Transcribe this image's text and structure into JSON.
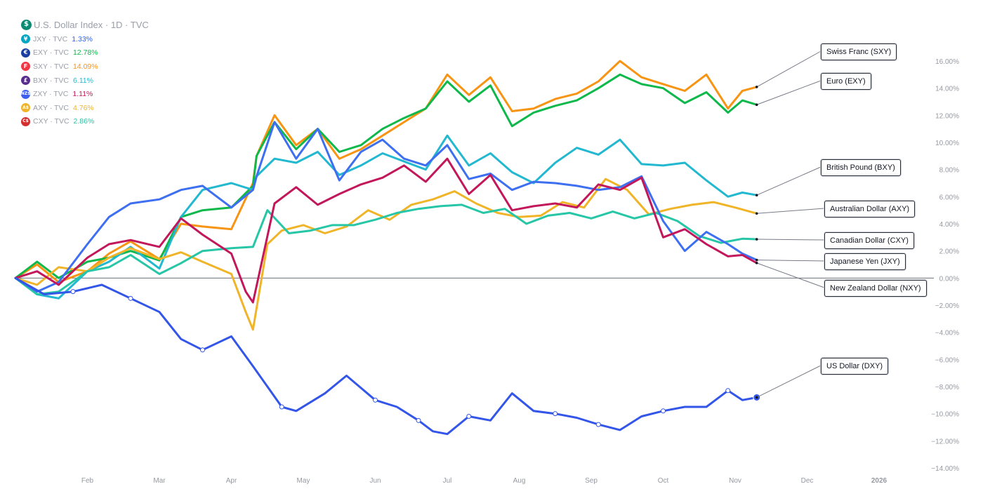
{
  "legend": {
    "title": "U.S. Dollar Index · 1D · TVC",
    "title_badge": "$",
    "title_badge_color": "#0e8a72",
    "items": [
      {
        "symbol": "JXY · TVC",
        "value": "1.33%",
        "badge": "¥",
        "badge_color": "#00a6c4",
        "value_color": "#2962ff"
      },
      {
        "symbol": "EXY · TVC",
        "value": "12.78%",
        "badge": "€",
        "badge_color": "#1a3fa0",
        "value_color": "#0fb84b"
      },
      {
        "symbol": "SXY · TVC",
        "value": "14.09%",
        "badge": "F",
        "badge_color": "#f23645",
        "value_color": "#f79413"
      },
      {
        "symbol": "BXY · TVC",
        "value": "6.11%",
        "badge": "£",
        "badge_color": "#5a2d91",
        "value_color": "#22b8cf"
      },
      {
        "symbol": "ZXY · TVC",
        "value": "1.11%",
        "badge": "NZ$",
        "badge_color": "#3d5ff0",
        "value_color": "#c2185b"
      },
      {
        "symbol": "AXY · TVC",
        "value": "4.76%",
        "badge": "A$",
        "badge_color": "#f0b429",
        "value_color": "#f0b429"
      },
      {
        "symbol": "CXY · TVC",
        "value": "2.86%",
        "badge": "C$",
        "badge_color": "#d32f2f",
        "value_color": "#26c6a6"
      }
    ]
  },
  "callouts": [
    {
      "label": "Swiss Franc (SXY)"
    },
    {
      "label": "Euro (EXY)"
    },
    {
      "label": "British Pound (BXY)"
    },
    {
      "label": "Australian Dollar (AXY)"
    },
    {
      "label": "Canadian Dollar (CXY)"
    },
    {
      "label": "Japanese Yen (JXY)"
    },
    {
      "label": "New Zealand Dollar (NXY)"
    },
    {
      "label": "US Dollar (DXY)"
    }
  ],
  "chart_data": {
    "type": "line",
    "ylim": [
      -14,
      16
    ],
    "y_ticks": [
      "16.00%",
      "14.00%",
      "12.00%",
      "10.00%",
      "8.00%",
      "6.00%",
      "4.00%",
      "2.00%",
      "0.00%",
      "−2.00%",
      "−4.00%",
      "−6.00%",
      "−8.00%",
      "−10.00%",
      "−12.00%",
      "−14.00%"
    ],
    "x_ticks": [
      "Feb",
      "Mar",
      "Apr",
      "May",
      "Jun",
      "Jul",
      "Aug",
      "Sep",
      "Oct",
      "Nov",
      "Dec",
      "2026"
    ],
    "x_range": [
      0,
      12.3
    ],
    "series": [
      {
        "name": "SXY",
        "color": "#f79413",
        "x": [
          0,
          0.3,
          0.6,
          1,
          1.3,
          1.6,
          2,
          2.3,
          2.6,
          3,
          3.3,
          3.35,
          3.6,
          3.9,
          4.2,
          4.5,
          4.8,
          5.1,
          5.4,
          5.7,
          6,
          6.3,
          6.6,
          6.9,
          7.2,
          7.5,
          7.8,
          8.1,
          8.4,
          8.7,
          9,
          9.3,
          9.6,
          9.9,
          10.1,
          10.3
        ],
        "y": [
          0,
          1,
          -0.3,
          0.5,
          1.8,
          2.7,
          1.4,
          4,
          3.8,
          3.6,
          7,
          9,
          12,
          9.8,
          11,
          8.8,
          9.5,
          10.5,
          11.5,
          12.5,
          15,
          13.5,
          14.8,
          12.3,
          12.5,
          13.2,
          13.6,
          14.5,
          16,
          14.8,
          14.3,
          13.8,
          15,
          12.5,
          13.8,
          14.09
        ]
      },
      {
        "name": "EXY",
        "color": "#0fb84b",
        "x": [
          0,
          0.3,
          0.6,
          1,
          1.3,
          1.6,
          2,
          2.3,
          2.6,
          3,
          3.3,
          3.35,
          3.6,
          3.9,
          4.2,
          4.5,
          4.8,
          5.1,
          5.4,
          5.7,
          6,
          6.3,
          6.6,
          6.9,
          7.2,
          7.5,
          7.8,
          8.1,
          8.4,
          8.7,
          9,
          9.3,
          9.6,
          9.9,
          10.1,
          10.3
        ],
        "y": [
          0,
          1.2,
          0,
          1.2,
          1.5,
          2,
          1.3,
          4.5,
          5,
          5.2,
          6.8,
          9,
          11.5,
          9.5,
          11,
          9.3,
          9.8,
          11,
          11.8,
          12.5,
          14.5,
          13,
          14.2,
          11.2,
          12.2,
          12.7,
          13.1,
          14,
          15,
          14.3,
          14,
          12.9,
          13.7,
          12.2,
          13.1,
          12.78
        ]
      },
      {
        "name": "BXY",
        "color": "#22b8cf",
        "x": [
          0,
          0.3,
          0.6,
          1,
          1.3,
          1.6,
          2,
          2.3,
          2.6,
          3,
          3.3,
          3.35,
          3.6,
          3.9,
          4.2,
          4.5,
          4.8,
          5.1,
          5.4,
          5.7,
          6,
          6.3,
          6.6,
          6.9,
          7.2,
          7.5,
          7.8,
          8.1,
          8.4,
          8.7,
          9,
          9.3,
          9.6,
          9.9,
          10.1,
          10.3
        ],
        "y": [
          0,
          -1.2,
          -1.5,
          0.5,
          1.2,
          2.3,
          0.7,
          4.5,
          6.5,
          7,
          6.5,
          7.5,
          8.8,
          8.5,
          9.3,
          7.6,
          8.3,
          9.2,
          8.6,
          8,
          10.5,
          8.3,
          9.2,
          7.8,
          7,
          8.5,
          9.6,
          9.1,
          10.2,
          8.4,
          8.3,
          8.5,
          7.2,
          6,
          6.3,
          6.11
        ]
      },
      {
        "name": "AXY",
        "color": "#f0b429",
        "x": [
          0,
          0.3,
          0.6,
          1,
          1.3,
          1.6,
          2,
          2.3,
          2.6,
          3,
          3.2,
          3.3,
          3.5,
          3.7,
          4,
          4.3,
          4.6,
          4.9,
          5.2,
          5.5,
          5.8,
          6.1,
          6.4,
          6.7,
          7,
          7.3,
          7.6,
          7.9,
          8.2,
          8.5,
          8.8,
          9.1,
          9.4,
          9.7,
          10,
          10.3
        ],
        "y": [
          0,
          -0.5,
          0.8,
          0.5,
          1.5,
          2.2,
          1.4,
          1.9,
          1.2,
          0.3,
          -2.5,
          -3.8,
          2.5,
          3.5,
          3.9,
          3.3,
          3.8,
          5,
          4.3,
          5.4,
          5.8,
          6.4,
          5.5,
          4.8,
          4.5,
          4.6,
          5.6,
          5.2,
          7.3,
          6.5,
          4.7,
          5.1,
          5.4,
          5.6,
          5.2,
          4.76
        ]
      },
      {
        "name": "CXY",
        "color": "#26c6a6",
        "x": [
          0,
          0.3,
          0.6,
          1,
          1.3,
          1.6,
          2,
          2.3,
          2.6,
          3,
          3.3,
          3.5,
          3.8,
          4.1,
          4.4,
          4.7,
          5,
          5.3,
          5.6,
          5.9,
          6.2,
          6.5,
          6.8,
          7.1,
          7.4,
          7.7,
          8,
          8.3,
          8.6,
          8.9,
          9.2,
          9.5,
          9.8,
          10.1,
          10.3
        ],
        "y": [
          0,
          -1.2,
          -1,
          0.5,
          0.8,
          1.7,
          0.3,
          1.1,
          2,
          2.2,
          2.3,
          5,
          3.3,
          3.5,
          3.9,
          3.9,
          4.3,
          4.8,
          5.1,
          5.3,
          5.4,
          4.8,
          5.1,
          4,
          4.6,
          4.8,
          4.4,
          4.9,
          4.4,
          4.8,
          4.2,
          3.1,
          2.6,
          2.9,
          2.86
        ]
      },
      {
        "name": "JXY",
        "color": "#3d6ff0",
        "x": [
          0,
          0.3,
          0.6,
          1,
          1.3,
          1.6,
          2,
          2.3,
          2.6,
          3,
          3.3,
          3.35,
          3.6,
          3.9,
          4.2,
          4.5,
          4.8,
          5.1,
          5.4,
          5.7,
          6,
          6.3,
          6.6,
          6.9,
          7.2,
          7.5,
          7.8,
          8.1,
          8.4,
          8.7,
          9,
          9.3,
          9.6,
          9.9,
          10.1,
          10.3
        ],
        "y": [
          0,
          -1,
          -0.3,
          2.5,
          4.5,
          5.5,
          5.8,
          6.5,
          6.8,
          5.2,
          6.5,
          7.5,
          11.5,
          8.8,
          11,
          7.2,
          9.3,
          10.2,
          8.8,
          8.3,
          9.8,
          7.3,
          7.7,
          6.5,
          7.1,
          7,
          6.8,
          6.5,
          6.7,
          7.5,
          4.2,
          2,
          3.4,
          2.5,
          1.8,
          1.33
        ]
      },
      {
        "name": "ZXY",
        "color": "#c2185b",
        "x": [
          0,
          0.3,
          0.6,
          1,
          1.3,
          1.6,
          2,
          2.3,
          2.6,
          3,
          3.2,
          3.3,
          3.6,
          3.9,
          4.2,
          4.5,
          4.8,
          5.1,
          5.4,
          5.7,
          6,
          6.3,
          6.6,
          6.9,
          7.2,
          7.5,
          7.8,
          8.1,
          8.4,
          8.7,
          9,
          9.3,
          9.6,
          9.9,
          10.1,
          10.3
        ],
        "y": [
          0,
          0.5,
          -0.5,
          1.5,
          2.5,
          2.8,
          2.3,
          4.4,
          3.2,
          1.8,
          -1,
          -1.8,
          5.5,
          6.7,
          5.4,
          6.2,
          6.9,
          7.4,
          8.3,
          7.1,
          8.8,
          6.2,
          7.6,
          5,
          5.3,
          5.5,
          5.2,
          6.9,
          6.5,
          7.4,
          3,
          3.6,
          2.5,
          1.6,
          1.7,
          1.11
        ]
      },
      {
        "name": "DXY",
        "color": "#3355e8",
        "x": [
          0,
          0.4,
          0.8,
          1.2,
          1.6,
          2,
          2.3,
          2.6,
          3,
          3.3,
          3.7,
          3.9,
          4.3,
          4.6,
          5,
          5.3,
          5.6,
          5.8,
          6,
          6.3,
          6.6,
          6.9,
          7.2,
          7.5,
          7.8,
          8.1,
          8.4,
          8.7,
          9,
          9.3,
          9.6,
          9.9,
          10.1,
          10.3
        ],
        "y": [
          0,
          -1.2,
          -1,
          -0.5,
          -1.5,
          -2.5,
          -4.5,
          -5.3,
          -4.3,
          -6.5,
          -9.5,
          -9.8,
          -8.5,
          -7.2,
          -9,
          -9.5,
          -10.5,
          -11.3,
          -11.5,
          -10.2,
          -10.5,
          -8.5,
          -9.8,
          -10,
          -10.3,
          -10.8,
          -11.2,
          -10.2,
          -9.8,
          -9.5,
          -9.5,
          -8.3,
          -9,
          -8.8
        ]
      }
    ]
  }
}
